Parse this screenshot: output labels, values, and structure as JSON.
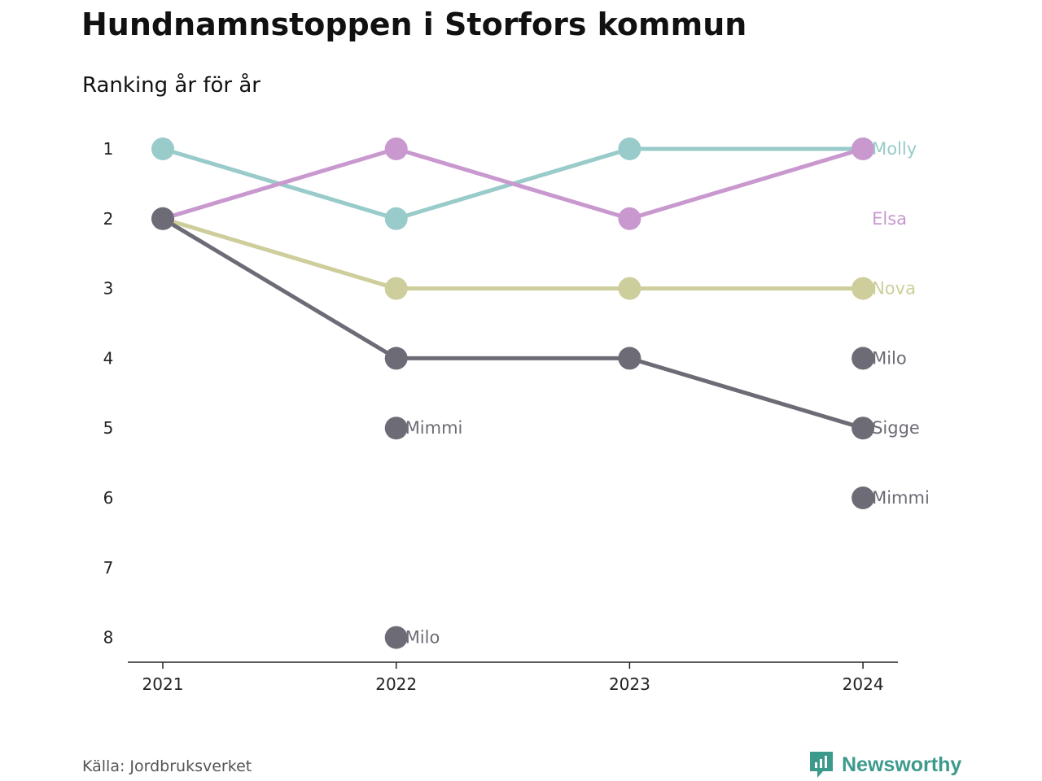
{
  "title": "Hundnamnstoppen i Storfors kommun",
  "subtitle": "Ranking år för år",
  "source": "Källa: Jordbruksverket",
  "brand": {
    "name": "Newsworthy",
    "icon": "newsworthy-logo-icon",
    "color": "#3c9a8c"
  },
  "chart_data": {
    "type": "line",
    "title": "Hundnamnstoppen i Storfors kommun",
    "subtitle": "Ranking år för år",
    "x": [
      "2021",
      "2022",
      "2023",
      "2024"
    ],
    "y_ticks": [
      1,
      2,
      3,
      4,
      5,
      6,
      7,
      8
    ],
    "y_inverted": true,
    "ylim": [
      1,
      8
    ],
    "grid": false,
    "series": [
      {
        "name": "Nova",
        "color": "#cdce9b",
        "values": [
          2,
          3,
          3,
          3
        ]
      },
      {
        "name": "Molly",
        "color": "#98cbc9",
        "values": [
          1,
          2,
          1,
          1
        ]
      },
      {
        "name": "Elsa",
        "color": "#c898cf",
        "values": [
          2,
          1,
          2,
          1
        ]
      },
      {
        "name": "Sigge",
        "color": "#6d6b75",
        "values": [
          2,
          4,
          4,
          5
        ]
      }
    ],
    "other_points": [
      {
        "name": "Mimmi",
        "x": "2022",
        "rank": 5,
        "label": "Mimmi"
      },
      {
        "name": "Milo",
        "x": "2022",
        "rank": 8,
        "label": "Milo"
      },
      {
        "name": "Milo",
        "x": "2024",
        "rank": 4,
        "label": "Milo"
      },
      {
        "name": "Mimmi",
        "x": "2024",
        "rank": 6,
        "label": "Mimmi"
      }
    ],
    "other_color": "#6d6b75",
    "end_labels": [
      {
        "text": "Molly",
        "rank": 1,
        "color": "#98cbc9"
      },
      {
        "text": "Elsa",
        "rank": 2,
        "color": "#c898cf"
      },
      {
        "text": "Nova",
        "rank": 3,
        "color": "#cdce9b"
      },
      {
        "text": "Sigge",
        "rank": 5,
        "color": "#6d6b75"
      }
    ]
  }
}
